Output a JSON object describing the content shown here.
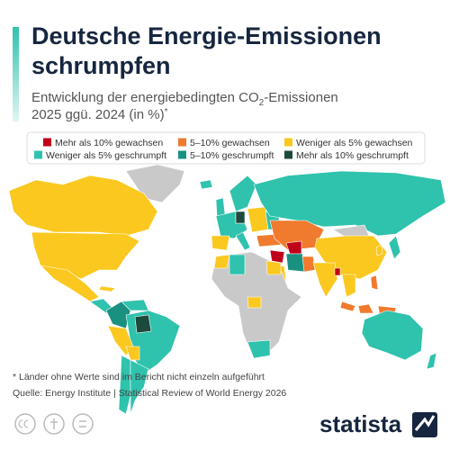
{
  "header": {
    "title_lines": [
      "Deutsche Energie-Emissionen",
      "schrumpfen"
    ],
    "subtitle_line1": [
      "Entwicklung der energiebedingten CO",
      "2",
      "-Emissionen"
    ],
    "subtitle_line2": [
      "2025 ggü. 2024 (in %)",
      "*"
    ]
  },
  "legend": {
    "items": [
      {
        "label": "Mehr als 10% gewachsen",
        "color": "#c0001a"
      },
      {
        "label": "5–10% gewachsen",
        "color": "#f07a2e"
      },
      {
        "label": "Weniger als 5% gewachsen",
        "color": "#fac81f"
      },
      {
        "label": "Weniger als 5% geschrumpft",
        "color": "#2fc2ad"
      },
      {
        "label": "5–10% geschrumpft",
        "color": "#1a9080"
      },
      {
        "label": "Mehr als 10% geschrumpft",
        "color": "#1c4a3c"
      }
    ]
  },
  "footer": {
    "note": "* Länder ohne Werte sind im Bericht nicht einzeln aufgeführt",
    "source": "Quelle: Energy Institute | Statistical Review of World Energy 2026",
    "brand": "statista"
  }
}
